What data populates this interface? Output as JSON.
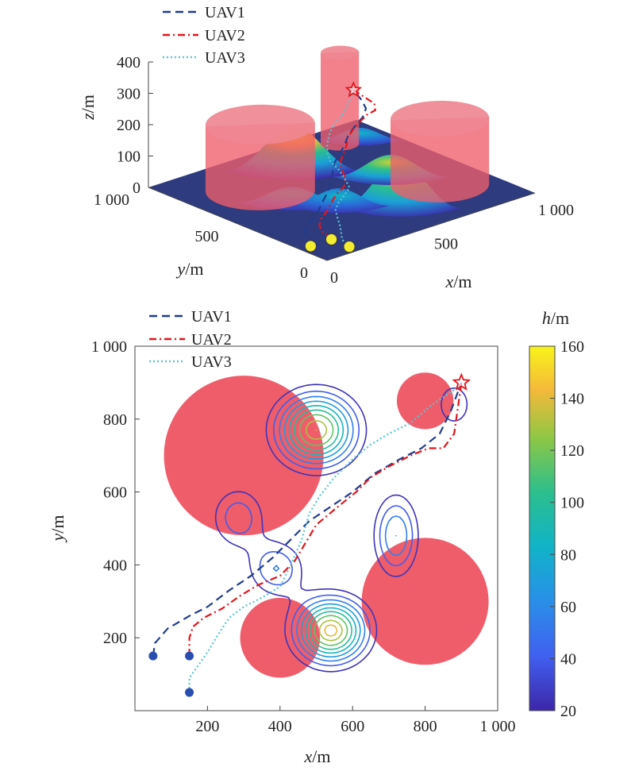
{
  "colors": {
    "uav1": "#1f3d8f",
    "uav2": "#e3161b",
    "uav3": "#58c6d6",
    "obstacle": "#ef5d6b",
    "start_marker_3d": "#f2ec31",
    "start_marker_2d": "#2a4eb0",
    "goal_star": "#e3161b",
    "floor": "#2e3b7e"
  },
  "chart_data": [
    {
      "type": "surface3d",
      "xlabel_var": "x",
      "xlabel_unit": "/m",
      "ylabel_var": "y",
      "ylabel_unit": "/m",
      "zlabel_var": "z",
      "zlabel_unit": "/m",
      "xlim": [
        0,
        1000
      ],
      "ylim": [
        0,
        1000
      ],
      "zlim": [
        0,
        400
      ],
      "x_ticks": [
        "0",
        "500",
        "1 000"
      ],
      "y_ticks": [
        "0",
        "500",
        "1 000"
      ],
      "z_ticks": [
        "0",
        "100",
        "200",
        "300",
        "400"
      ],
      "legend": [
        "UAV1",
        "UAV2",
        "UAV3"
      ],
      "legend_position": "top-left",
      "obstacles": [
        {
          "type": "cylinder",
          "cx": 280,
          "cy": 700,
          "r": 200,
          "height": 210
        },
        {
          "type": "cylinder",
          "cx": 800,
          "cy": 860,
          "r": 70,
          "height": 290
        },
        {
          "type": "cylinder",
          "cx": 800,
          "cy": 300,
          "r": 180,
          "height": 210
        }
      ],
      "start_points": [
        [
          50,
          150
        ],
        [
          150,
          150
        ],
        [
          150,
          50
        ]
      ],
      "goal_point": [
        900,
        900,
        140
      ]
    },
    {
      "type": "contour",
      "xlabel_var": "x",
      "xlabel_unit": "/m",
      "ylabel_var": "y",
      "ylabel_unit": "/m",
      "xlim": [
        0,
        1000
      ],
      "ylim": [
        0,
        1000
      ],
      "x_ticks": [
        200,
        400,
        600,
        800,
        1000
      ],
      "y_ticks": [
        200,
        400,
        600,
        800,
        1000
      ],
      "x_tick_labels": [
        "200",
        "400",
        "600",
        "800",
        "1 000"
      ],
      "y_tick_labels": [
        "200",
        "400",
        "600",
        "800",
        "1 000"
      ],
      "colorbar": {
        "label_var": "h",
        "label_unit": "/m",
        "min": 20,
        "max": 160,
        "ticks": [
          20,
          40,
          60,
          80,
          100,
          120,
          140,
          160
        ]
      },
      "legend": [
        "UAV1",
        "UAV2",
        "UAV3"
      ],
      "legend_position": "top-left",
      "obstacles": [
        {
          "cx": 300,
          "cy": 700,
          "r": 220
        },
        {
          "cx": 400,
          "cy": 200,
          "r": 110
        },
        {
          "cx": 800,
          "cy": 300,
          "r": 175
        },
        {
          "cx": 800,
          "cy": 850,
          "r": 78
        }
      ],
      "hills": [
        {
          "cx": 500,
          "cy": 770,
          "h": 140,
          "sx": 105,
          "sy": 95
        },
        {
          "cx": 540,
          "cy": 220,
          "h": 145,
          "sx": 95,
          "sy": 85
        },
        {
          "cx": 285,
          "cy": 530,
          "h": 50,
          "sx": 75,
          "sy": 85
        },
        {
          "cx": 390,
          "cy": 390,
          "h": 55,
          "sx": 75,
          "sy": 75
        },
        {
          "cx": 720,
          "cy": 480,
          "h": 70,
          "sx": 60,
          "sy": 110
        },
        {
          "cx": 880,
          "cy": 840,
          "h": 38,
          "sx": 55,
          "sy": 70
        }
      ],
      "contour_levels": [
        25,
        40,
        55,
        70,
        85,
        100,
        115,
        130,
        140
      ],
      "series": [
        {
          "name": "UAV1",
          "start": [
            50,
            150
          ],
          "points": [
            [
              50,
              150
            ],
            [
              55,
              185
            ],
            [
              90,
              225
            ],
            [
              150,
              260
            ],
            [
              200,
              285
            ],
            [
              260,
              330
            ],
            [
              320,
              370
            ],
            [
              380,
              420
            ],
            [
              430,
              470
            ],
            [
              480,
              520
            ],
            [
              540,
              560
            ],
            [
              600,
              600
            ],
            [
              660,
              650
            ],
            [
              730,
              690
            ],
            [
              790,
              720
            ],
            [
              840,
              760
            ],
            [
              870,
              820
            ],
            [
              900,
              900
            ]
          ]
        },
        {
          "name": "UAV2",
          "start": [
            150,
            150
          ],
          "points": [
            [
              150,
              150
            ],
            [
              150,
              200
            ],
            [
              160,
              230
            ],
            [
              190,
              255
            ],
            [
              240,
              280
            ],
            [
              290,
              315
            ],
            [
              340,
              345
            ],
            [
              400,
              370
            ],
            [
              440,
              410
            ],
            [
              470,
              460
            ],
            [
              500,
              510
            ],
            [
              560,
              560
            ],
            [
              610,
              600
            ],
            [
              650,
              640
            ],
            [
              700,
              670
            ],
            [
              760,
              700
            ],
            [
              810,
              720
            ],
            [
              850,
              720
            ],
            [
              880,
              760
            ],
            [
              900,
              900
            ]
          ]
        },
        {
          "name": "UAV3",
          "start": [
            150,
            50
          ],
          "points": [
            [
              150,
              50
            ],
            [
              150,
              90
            ],
            [
              175,
              125
            ],
            [
              200,
              160
            ],
            [
              230,
              210
            ],
            [
              260,
              255
            ],
            [
              300,
              285
            ],
            [
              350,
              310
            ],
            [
              400,
              340
            ],
            [
              430,
              400
            ],
            [
              460,
              470
            ],
            [
              480,
              540
            ],
            [
              510,
              590
            ],
            [
              550,
              640
            ],
            [
              600,
              690
            ],
            [
              650,
              730
            ],
            [
              700,
              760
            ],
            [
              760,
              790
            ],
            [
              820,
              840
            ],
            [
              880,
              880
            ],
            [
              900,
              900
            ]
          ]
        }
      ],
      "goal_point": [
        900,
        900
      ]
    }
  ]
}
